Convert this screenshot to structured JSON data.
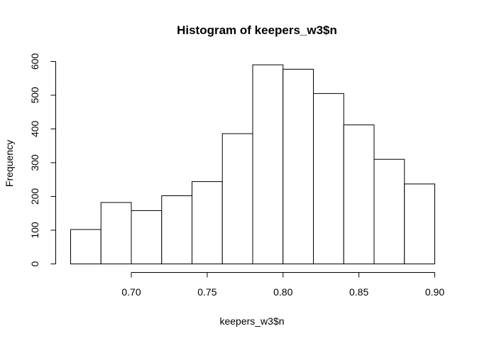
{
  "chart_data": {
    "type": "bar",
    "title": "Histogram of keepers_w3$n",
    "xlabel": "keepers_w3$n",
    "ylabel": "Frequency",
    "bin_edges": [
      0.66,
      0.68,
      0.7,
      0.72,
      0.74,
      0.76,
      0.78,
      0.8,
      0.82,
      0.84,
      0.86,
      0.88,
      0.9
    ],
    "values": [
      102,
      182,
      158,
      202,
      244,
      386,
      590,
      577,
      505,
      412,
      310,
      237
    ],
    "xlim": [
      0.66,
      0.9
    ],
    "ylim": [
      0,
      600
    ],
    "x_ticks": [
      "0.70",
      "0.75",
      "0.80",
      "0.85",
      "0.90"
    ],
    "y_ticks": [
      "0",
      "100",
      "200",
      "300",
      "400",
      "500",
      "600"
    ],
    "grid": false,
    "legend": "none"
  }
}
